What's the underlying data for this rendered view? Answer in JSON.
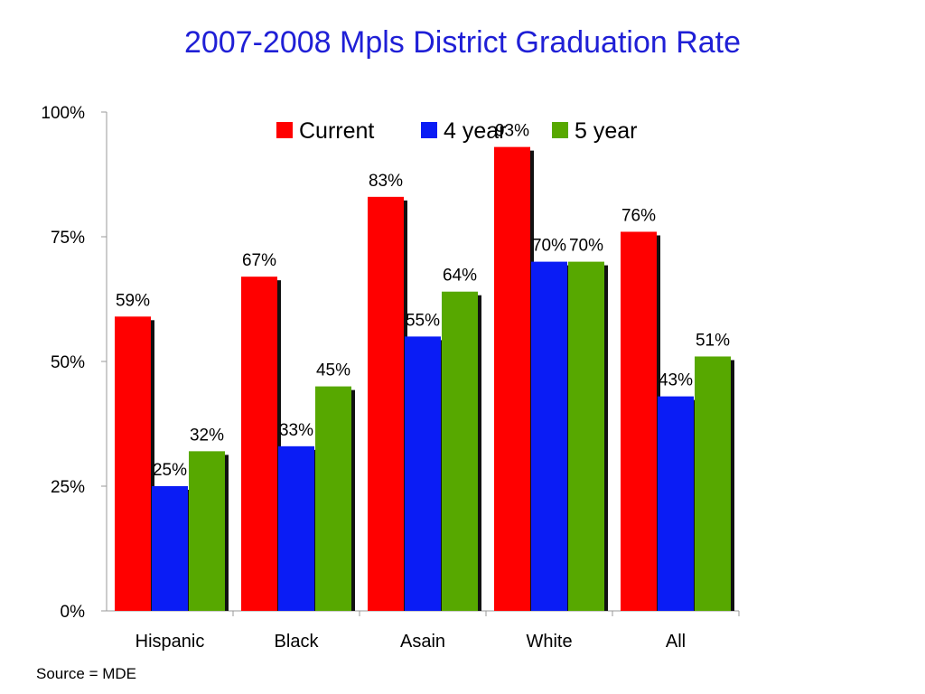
{
  "chart_data": {
    "type": "bar",
    "title": "2007-2008 Mpls District Graduation Rate",
    "categories": [
      "Hispanic",
      "Black",
      "Asain",
      "White",
      "All"
    ],
    "series": [
      {
        "name": "Current",
        "color": "#ff0000",
        "values": [
          59,
          67,
          83,
          93,
          76
        ]
      },
      {
        "name": "4 year",
        "color": "#0a1cf5",
        "values": [
          25,
          33,
          55,
          70,
          43
        ]
      },
      {
        "name": "5 year",
        "color": "#57a800",
        "values": [
          32,
          45,
          64,
          70,
          51
        ]
      }
    ],
    "ylim": [
      0,
      100
    ],
    "yticks": [
      "0%",
      "25%",
      "50%",
      "75%",
      "100%"
    ],
    "value_suffix": "%",
    "legend": "top-center",
    "grid": false,
    "source": "Source = MDE"
  }
}
